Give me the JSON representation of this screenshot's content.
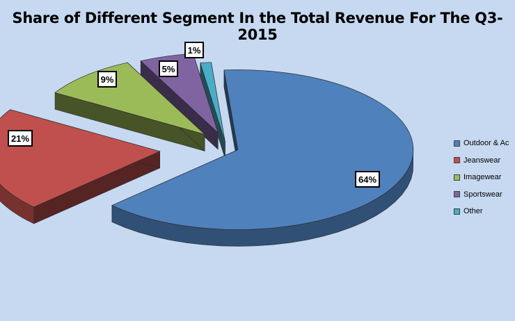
{
  "chart_data": {
    "type": "pie",
    "title": "Share of Different Segment In the Total Revenue For The Q3- 2015",
    "categories": [
      "Outdoor & Ac",
      "Jeanswear",
      "Imagewear",
      "Sportswear",
      "Other"
    ],
    "values": [
      64,
      21,
      9,
      5,
      1
    ],
    "data_labels": [
      "64%",
      "21%",
      "9%",
      "5%",
      "1%"
    ],
    "colors": [
      "#4f81bd",
      "#c0504d",
      "#9bbb59",
      "#8064a2",
      "#4bacc6"
    ],
    "style": "exploded-3d",
    "legend_position": "right",
    "grid": false
  }
}
